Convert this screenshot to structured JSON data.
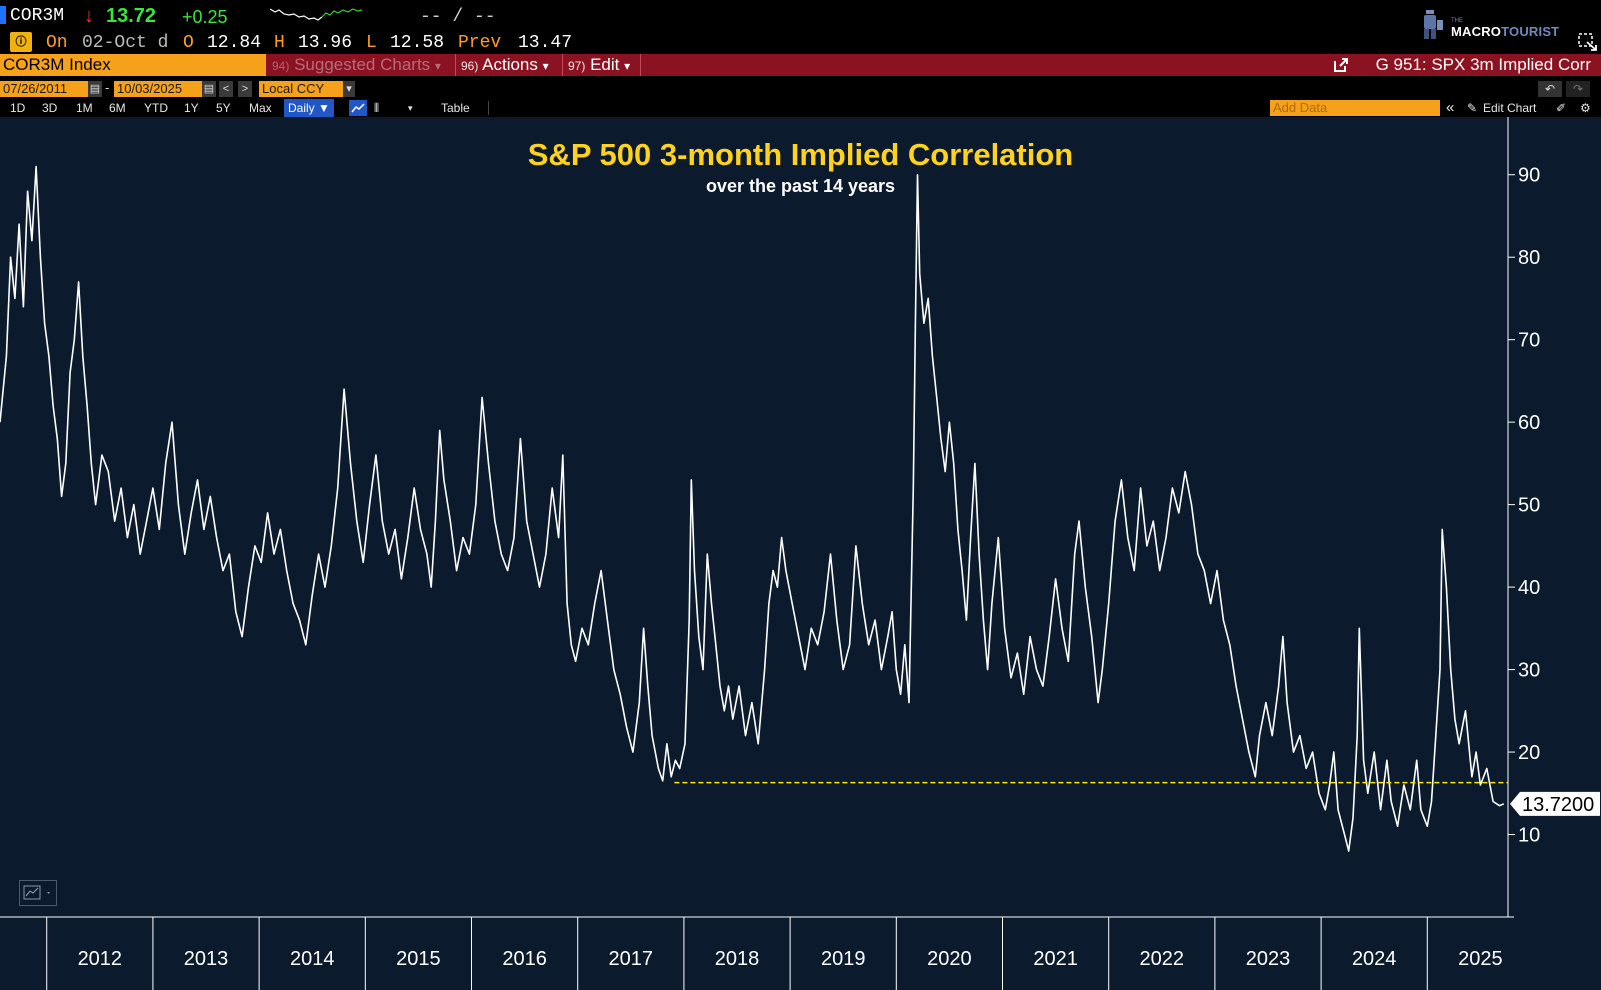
{
  "header": {
    "ticker": "COR3M",
    "arrow": "↓",
    "last": "13.72",
    "change": "+0.25",
    "bid_ask": "-- / --"
  },
  "quote": {
    "on_label": "On",
    "date": "02-Oct d",
    "open_label": "O",
    "open": "12.84",
    "high_label": "H",
    "high": "13.96",
    "low_label": "L",
    "low": "12.58",
    "prev_label": "Prev",
    "prev": "13.47"
  },
  "logo": {
    "small": "THE",
    "macro": "MACRO",
    "tourist": "TOURIST"
  },
  "command_bar": {
    "security": "COR3M Index",
    "menu": [
      {
        "num": "94)",
        "label": "Suggested Charts",
        "caret": "▾"
      },
      {
        "num": "96)",
        "label": "Actions",
        "caret": "▾"
      },
      {
        "num": "97)",
        "label": "Edit",
        "caret": "▾"
      }
    ],
    "page_title": "G 951: SPX 3m Implied Corr"
  },
  "date_range": {
    "start": "07/26/2011",
    "separator": "-",
    "end": "10/03/2025",
    "currency": "Local CCY",
    "prev": "<",
    "next": ">"
  },
  "toolbar": {
    "periods": [
      "1D",
      "3D",
      "1M",
      "6M",
      "YTD",
      "1Y",
      "5Y",
      "Max"
    ],
    "frequency": "Daily ▼",
    "table": "Table",
    "add_data_placeholder": "Add Data",
    "collapse": "«",
    "edit_chart": "Edit Chart"
  },
  "chart_data": {
    "type": "line",
    "title": "S&P 500 3-month Implied Correlation",
    "subtitle": "over the past 14 years",
    "ylim": [
      0,
      97
    ],
    "yticks": [
      10,
      20,
      30,
      40,
      50,
      60,
      70,
      80,
      90
    ],
    "xlim": [
      2011.56,
      2025.76
    ],
    "xticks": [
      "2012",
      "2013",
      "2014",
      "2015",
      "2016",
      "2017",
      "2018",
      "2019",
      "2020",
      "2021",
      "2022",
      "2023",
      "2024",
      "2025"
    ],
    "last_value_label": "13.7200",
    "last_value": 13.72,
    "reference_line": {
      "value": 16.3,
      "from_x": 2017.91,
      "style": "dashed",
      "color": "#ffe600"
    },
    "series": [
      {
        "name": "COR3M Index",
        "color": "#ffffff",
        "points": [
          [
            2011.56,
            60
          ],
          [
            2011.62,
            68
          ],
          [
            2011.66,
            80
          ],
          [
            2011.7,
            75
          ],
          [
            2011.74,
            84
          ],
          [
            2011.78,
            74
          ],
          [
            2011.82,
            88
          ],
          [
            2011.86,
            82
          ],
          [
            2011.9,
            91
          ],
          [
            2011.94,
            80
          ],
          [
            2011.98,
            72
          ],
          [
            2012.02,
            68
          ],
          [
            2012.06,
            62
          ],
          [
            2012.1,
            58
          ],
          [
            2012.14,
            51
          ],
          [
            2012.18,
            55
          ],
          [
            2012.22,
            66
          ],
          [
            2012.26,
            70
          ],
          [
            2012.3,
            77
          ],
          [
            2012.34,
            68
          ],
          [
            2012.38,
            62
          ],
          [
            2012.42,
            55
          ],
          [
            2012.46,
            50
          ],
          [
            2012.52,
            56
          ],
          [
            2012.58,
            54
          ],
          [
            2012.64,
            48
          ],
          [
            2012.7,
            52
          ],
          [
            2012.76,
            46
          ],
          [
            2012.82,
            50
          ],
          [
            2012.88,
            44
          ],
          [
            2012.94,
            48
          ],
          [
            2013.0,
            52
          ],
          [
            2013.06,
            47
          ],
          [
            2013.12,
            55
          ],
          [
            2013.18,
            60
          ],
          [
            2013.24,
            50
          ],
          [
            2013.3,
            44
          ],
          [
            2013.36,
            49
          ],
          [
            2013.42,
            53
          ],
          [
            2013.48,
            47
          ],
          [
            2013.54,
            51
          ],
          [
            2013.6,
            46
          ],
          [
            2013.66,
            42
          ],
          [
            2013.72,
            44
          ],
          [
            2013.78,
            37
          ],
          [
            2013.84,
            34
          ],
          [
            2013.9,
            40
          ],
          [
            2013.96,
            45
          ],
          [
            2014.02,
            43
          ],
          [
            2014.08,
            49
          ],
          [
            2014.14,
            44
          ],
          [
            2014.2,
            47
          ],
          [
            2014.26,
            42
          ],
          [
            2014.32,
            38
          ],
          [
            2014.38,
            36
          ],
          [
            2014.44,
            33
          ],
          [
            2014.5,
            39
          ],
          [
            2014.56,
            44
          ],
          [
            2014.62,
            40
          ],
          [
            2014.68,
            45
          ],
          [
            2014.74,
            52
          ],
          [
            2014.8,
            64
          ],
          [
            2014.86,
            55
          ],
          [
            2014.92,
            48
          ],
          [
            2014.98,
            43
          ],
          [
            2015.04,
            50
          ],
          [
            2015.1,
            56
          ],
          [
            2015.16,
            48
          ],
          [
            2015.22,
            44
          ],
          [
            2015.28,
            47
          ],
          [
            2015.34,
            41
          ],
          [
            2015.4,
            46
          ],
          [
            2015.46,
            52
          ],
          [
            2015.52,
            47
          ],
          [
            2015.58,
            44
          ],
          [
            2015.62,
            40
          ],
          [
            2015.66,
            48
          ],
          [
            2015.7,
            59
          ],
          [
            2015.74,
            53
          ],
          [
            2015.8,
            48
          ],
          [
            2015.86,
            42
          ],
          [
            2015.92,
            46
          ],
          [
            2015.98,
            44
          ],
          [
            2016.04,
            50
          ],
          [
            2016.1,
            63
          ],
          [
            2016.16,
            55
          ],
          [
            2016.22,
            48
          ],
          [
            2016.28,
            44
          ],
          [
            2016.34,
            42
          ],
          [
            2016.4,
            46
          ],
          [
            2016.46,
            58
          ],
          [
            2016.52,
            48
          ],
          [
            2016.58,
            44
          ],
          [
            2016.64,
            40
          ],
          [
            2016.7,
            44
          ],
          [
            2016.76,
            52
          ],
          [
            2016.82,
            46
          ],
          [
            2016.86,
            56
          ],
          [
            2016.9,
            38
          ],
          [
            2016.94,
            33
          ],
          [
            2016.98,
            31
          ],
          [
            2017.04,
            35
          ],
          [
            2017.1,
            33
          ],
          [
            2017.16,
            38
          ],
          [
            2017.22,
            42
          ],
          [
            2017.28,
            36
          ],
          [
            2017.34,
            30
          ],
          [
            2017.4,
            27
          ],
          [
            2017.46,
            23
          ],
          [
            2017.52,
            20
          ],
          [
            2017.58,
            26
          ],
          [
            2017.62,
            35
          ],
          [
            2017.66,
            28
          ],
          [
            2017.7,
            22
          ],
          [
            2017.76,
            18
          ],
          [
            2017.8,
            16.5
          ],
          [
            2017.84,
            21
          ],
          [
            2017.88,
            17
          ],
          [
            2017.92,
            19
          ],
          [
            2017.96,
            18
          ],
          [
            2018.01,
            21
          ],
          [
            2018.05,
            36
          ],
          [
            2018.07,
            53
          ],
          [
            2018.1,
            42
          ],
          [
            2018.14,
            34
          ],
          [
            2018.18,
            30
          ],
          [
            2018.22,
            44
          ],
          [
            2018.26,
            38
          ],
          [
            2018.3,
            33
          ],
          [
            2018.34,
            28
          ],
          [
            2018.38,
            25
          ],
          [
            2018.42,
            28
          ],
          [
            2018.46,
            24
          ],
          [
            2018.52,
            28
          ],
          [
            2018.58,
            22
          ],
          [
            2018.64,
            26
          ],
          [
            2018.7,
            21
          ],
          [
            2018.76,
            30
          ],
          [
            2018.8,
            38
          ],
          [
            2018.84,
            42
          ],
          [
            2018.88,
            40
          ],
          [
            2018.92,
            46
          ],
          [
            2018.96,
            42
          ],
          [
            2019.02,
            38
          ],
          [
            2019.08,
            34
          ],
          [
            2019.14,
            30
          ],
          [
            2019.2,
            35
          ],
          [
            2019.26,
            33
          ],
          [
            2019.32,
            37
          ],
          [
            2019.38,
            44
          ],
          [
            2019.44,
            36
          ],
          [
            2019.5,
            30
          ],
          [
            2019.56,
            33
          ],
          [
            2019.62,
            45
          ],
          [
            2019.68,
            38
          ],
          [
            2019.74,
            33
          ],
          [
            2019.8,
            36
          ],
          [
            2019.86,
            30
          ],
          [
            2019.92,
            34
          ],
          [
            2019.96,
            37
          ],
          [
            2020.0,
            30
          ],
          [
            2020.04,
            27
          ],
          [
            2020.08,
            33
          ],
          [
            2020.12,
            26
          ],
          [
            2020.16,
            52
          ],
          [
            2020.18,
            72
          ],
          [
            2020.2,
            90
          ],
          [
            2020.22,
            78
          ],
          [
            2020.26,
            72
          ],
          [
            2020.3,
            75
          ],
          [
            2020.34,
            68
          ],
          [
            2020.38,
            63
          ],
          [
            2020.42,
            58
          ],
          [
            2020.46,
            54
          ],
          [
            2020.5,
            60
          ],
          [
            2020.54,
            55
          ],
          [
            2020.58,
            47
          ],
          [
            2020.62,
            42
          ],
          [
            2020.66,
            36
          ],
          [
            2020.7,
            46
          ],
          [
            2020.74,
            55
          ],
          [
            2020.78,
            44
          ],
          [
            2020.82,
            36
          ],
          [
            2020.86,
            30
          ],
          [
            2020.9,
            38
          ],
          [
            2020.96,
            46
          ],
          [
            2021.02,
            35
          ],
          [
            2021.08,
            29
          ],
          [
            2021.14,
            32
          ],
          [
            2021.2,
            27
          ],
          [
            2021.26,
            34
          ],
          [
            2021.32,
            30
          ],
          [
            2021.38,
            28
          ],
          [
            2021.44,
            34
          ],
          [
            2021.5,
            41
          ],
          [
            2021.56,
            35
          ],
          [
            2021.62,
            31
          ],
          [
            2021.68,
            44
          ],
          [
            2021.72,
            48
          ],
          [
            2021.78,
            40
          ],
          [
            2021.84,
            34
          ],
          [
            2021.9,
            26
          ],
          [
            2021.94,
            30
          ],
          [
            2022.0,
            38
          ],
          [
            2022.06,
            48
          ],
          [
            2022.12,
            53
          ],
          [
            2022.18,
            46
          ],
          [
            2022.24,
            42
          ],
          [
            2022.3,
            52
          ],
          [
            2022.36,
            45
          ],
          [
            2022.42,
            48
          ],
          [
            2022.48,
            42
          ],
          [
            2022.54,
            46
          ],
          [
            2022.6,
            52
          ],
          [
            2022.66,
            49
          ],
          [
            2022.72,
            54
          ],
          [
            2022.78,
            50
          ],
          [
            2022.84,
            44
          ],
          [
            2022.9,
            42
          ],
          [
            2022.96,
            38
          ],
          [
            2023.02,
            42
          ],
          [
            2023.08,
            36
          ],
          [
            2023.14,
            33
          ],
          [
            2023.2,
            28
          ],
          [
            2023.26,
            24
          ],
          [
            2023.32,
            20
          ],
          [
            2023.38,
            17
          ],
          [
            2023.42,
            22
          ],
          [
            2023.48,
            26
          ],
          [
            2023.54,
            22
          ],
          [
            2023.6,
            28
          ],
          [
            2023.64,
            34
          ],
          [
            2023.68,
            26
          ],
          [
            2023.74,
            20
          ],
          [
            2023.8,
            22
          ],
          [
            2023.86,
            18
          ],
          [
            2023.92,
            20
          ],
          [
            2023.98,
            15
          ],
          [
            2024.04,
            13
          ],
          [
            2024.08,
            16
          ],
          [
            2024.12,
            20
          ],
          [
            2024.16,
            13
          ],
          [
            2024.22,
            10
          ],
          [
            2024.26,
            8
          ],
          [
            2024.3,
            12
          ],
          [
            2024.34,
            22
          ],
          [
            2024.36,
            35
          ],
          [
            2024.4,
            19
          ],
          [
            2024.44,
            15
          ],
          [
            2024.5,
            20
          ],
          [
            2024.56,
            13
          ],
          [
            2024.62,
            19
          ],
          [
            2024.66,
            14
          ],
          [
            2024.72,
            11
          ],
          [
            2024.78,
            16
          ],
          [
            2024.84,
            13
          ],
          [
            2024.9,
            19
          ],
          [
            2024.94,
            13
          ],
          [
            2025.0,
            11
          ],
          [
            2025.04,
            14
          ],
          [
            2025.08,
            22
          ],
          [
            2025.12,
            30
          ],
          [
            2025.14,
            47
          ],
          [
            2025.18,
            40
          ],
          [
            2025.22,
            30
          ],
          [
            2025.26,
            24
          ],
          [
            2025.3,
            21
          ],
          [
            2025.36,
            25
          ],
          [
            2025.42,
            17
          ],
          [
            2025.46,
            20
          ],
          [
            2025.5,
            16
          ],
          [
            2025.56,
            18
          ],
          [
            2025.62,
            14
          ],
          [
            2025.68,
            13.5
          ],
          [
            2025.72,
            13.72
          ]
        ]
      }
    ]
  }
}
